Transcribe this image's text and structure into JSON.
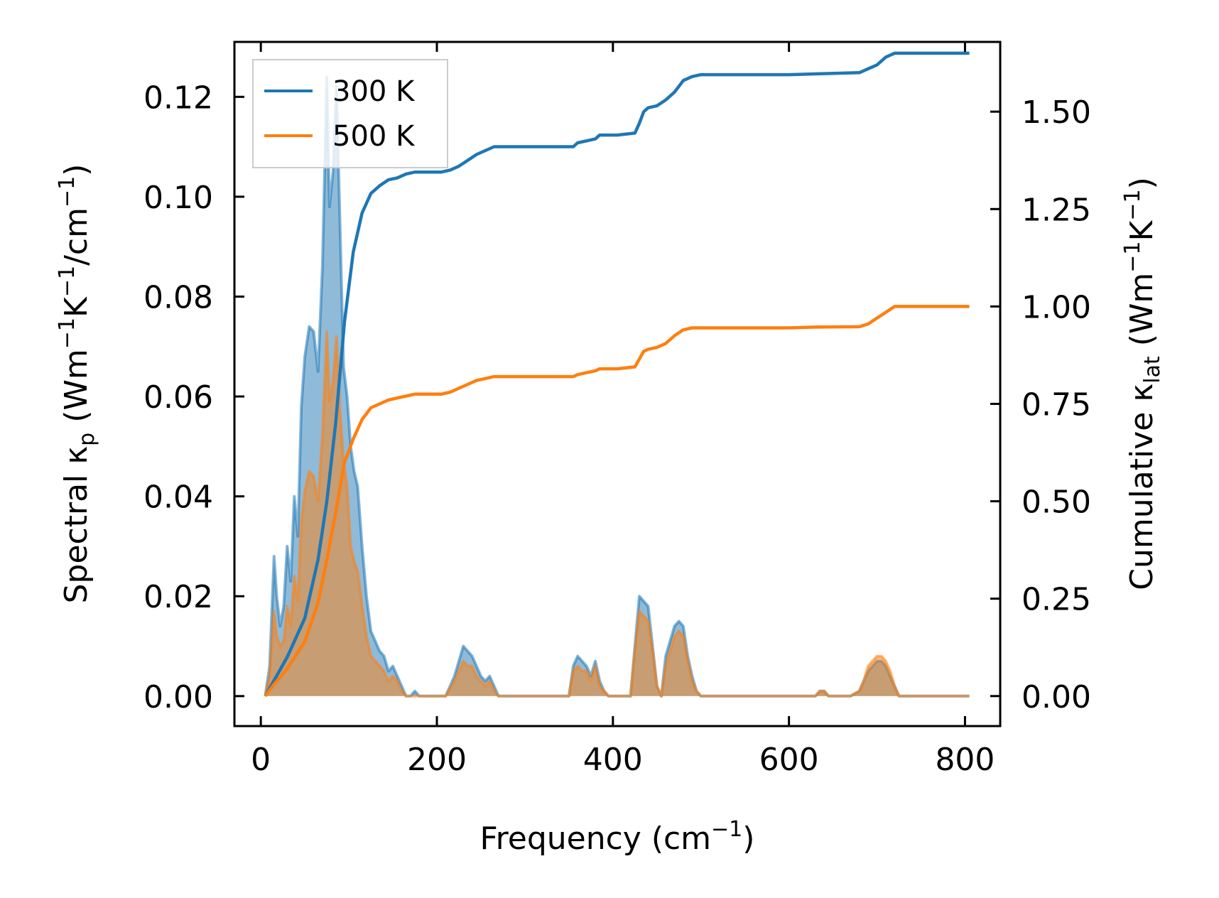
{
  "chart_data": {
    "type": "line",
    "xlabel_main": "Frequency (cm",
    "xlabel_sup": "−1",
    "xlabel_end": ")",
    "ylabel_left_text": "Spectral κ",
    "ylabel_left_sub": "p",
    "ylabel_left_units_a": " (Wm",
    "ylabel_left_sup1": "−1",
    "ylabel_left_units_b": "K",
    "ylabel_left_sup2": "−1",
    "ylabel_left_units_c": "/cm",
    "ylabel_left_sup3": "−1",
    "ylabel_left_end": ")",
    "ylabel_right_text": "Cumulative κ",
    "ylabel_right_sub": "lat",
    "ylabel_right_units_a": " (Wm",
    "ylabel_right_sup1": "−1",
    "ylabel_right_units_b": "K",
    "ylabel_right_sup2": "−1",
    "ylabel_right_end": ")",
    "xlim": [
      -30,
      840
    ],
    "ylim_left": [
      -0.006,
      0.131
    ],
    "ylim_right": [
      -0.077,
      1.679
    ],
    "x_ticks": [
      0,
      200,
      400,
      600,
      800
    ],
    "x_tick_labels": [
      "0",
      "200",
      "400",
      "600",
      "800"
    ],
    "y_left_ticks": [
      0,
      0.02,
      0.04,
      0.06,
      0.08,
      0.1,
      0.12
    ],
    "y_left_tick_labels": [
      "0.00",
      "0.02",
      "0.04",
      "0.06",
      "0.08",
      "0.10",
      "0.12"
    ],
    "y_right_ticks": [
      0,
      0.25,
      0.5,
      0.75,
      1.0,
      1.25,
      1.5
    ],
    "y_right_tick_labels": [
      "0.00",
      "0.25",
      "0.50",
      "0.75",
      "1.00",
      "1.25",
      "1.50"
    ],
    "legend_position": "top-left",
    "grid": false,
    "series": [
      {
        "name": "300 K",
        "color": "#1f77b4",
        "spectral_x": [
          5,
          10,
          15,
          18,
          22,
          26,
          30,
          34,
          38,
          42,
          46,
          50,
          55,
          60,
          65,
          70,
          75,
          78,
          82,
          86,
          90,
          94,
          98,
          102,
          106,
          110,
          115,
          120,
          125,
          130,
          135,
          140,
          145,
          150,
          155,
          160,
          165,
          170,
          175,
          180,
          185,
          190,
          195,
          200,
          210,
          220,
          225,
          230,
          235,
          240,
          245,
          250,
          255,
          260,
          265,
          270,
          275,
          280,
          300,
          350,
          355,
          360,
          365,
          370,
          375,
          380,
          385,
          390,
          395,
          400,
          420,
          425,
          430,
          435,
          440,
          445,
          450,
          455,
          460,
          465,
          470,
          475,
          480,
          485,
          490,
          495,
          500,
          520,
          600,
          630,
          635,
          640,
          645,
          650,
          670,
          680,
          685,
          690,
          695,
          700,
          705,
          710,
          715,
          720,
          725,
          730,
          740,
          800,
          805
        ],
        "spectral_y": [
          0.0,
          0.006,
          0.028,
          0.02,
          0.014,
          0.018,
          0.03,
          0.023,
          0.04,
          0.032,
          0.058,
          0.068,
          0.074,
          0.073,
          0.065,
          0.086,
          0.124,
          0.098,
          0.105,
          0.122,
          0.094,
          0.066,
          0.06,
          0.05,
          0.045,
          0.042,
          0.03,
          0.02,
          0.013,
          0.011,
          0.009,
          0.008,
          0.005,
          0.006,
          0.004,
          0.002,
          0.0,
          0.0,
          0.001,
          0.0,
          0.0,
          0.0,
          0.0,
          0.0,
          0.0,
          0.004,
          0.007,
          0.01,
          0.009,
          0.008,
          0.006,
          0.004,
          0.003,
          0.004,
          0.002,
          0.0,
          0.0,
          0.0,
          0.0,
          0.0,
          0.006,
          0.008,
          0.007,
          0.006,
          0.004,
          0.007,
          0.003,
          0.001,
          0.0,
          0.0,
          0.0,
          0.01,
          0.02,
          0.019,
          0.018,
          0.01,
          0.002,
          0.0,
          0.008,
          0.011,
          0.014,
          0.015,
          0.014,
          0.008,
          0.004,
          0.001,
          0.0,
          0.0,
          0.0,
          0.0,
          0.001,
          0.001,
          0.0,
          0.0,
          0.0,
          0.001,
          0.003,
          0.005,
          0.006,
          0.007,
          0.007,
          0.006,
          0.004,
          0.002,
          0.0,
          0.0,
          0.0,
          0.0,
          0.0
        ],
        "cumulative_x": [
          5,
          15,
          30,
          50,
          65,
          75,
          85,
          95,
          105,
          115,
          125,
          135,
          145,
          155,
          165,
          175,
          185,
          195,
          205,
          215,
          225,
          235,
          245,
          255,
          265,
          275,
          300,
          320,
          345,
          355,
          360,
          370,
          380,
          385,
          395,
          405,
          425,
          430,
          435,
          440,
          450,
          460,
          470,
          480,
          490,
          500,
          520,
          600,
          630,
          680,
          690,
          700,
          710,
          720,
          730,
          740,
          800,
          805
        ],
        "cumulative_y": [
          0.0,
          0.04,
          0.1,
          0.2,
          0.35,
          0.5,
          0.7,
          0.96,
          1.14,
          1.24,
          1.29,
          1.31,
          1.325,
          1.33,
          1.34,
          1.345,
          1.345,
          1.345,
          1.345,
          1.35,
          1.36,
          1.375,
          1.39,
          1.4,
          1.41,
          1.41,
          1.41,
          1.41,
          1.41,
          1.41,
          1.42,
          1.425,
          1.43,
          1.44,
          1.44,
          1.44,
          1.445,
          1.47,
          1.5,
          1.51,
          1.515,
          1.53,
          1.55,
          1.58,
          1.59,
          1.595,
          1.595,
          1.595,
          1.597,
          1.6,
          1.61,
          1.62,
          1.64,
          1.65,
          1.65,
          1.65,
          1.65,
          1.65
        ]
      },
      {
        "name": "500 K",
        "color": "#ff7f0e",
        "spectral_x": [
          5,
          10,
          15,
          18,
          22,
          26,
          30,
          34,
          38,
          42,
          46,
          50,
          55,
          60,
          65,
          70,
          75,
          78,
          82,
          86,
          90,
          94,
          98,
          102,
          106,
          110,
          115,
          120,
          125,
          130,
          135,
          140,
          145,
          150,
          155,
          160,
          165,
          170,
          175,
          180,
          185,
          190,
          195,
          200,
          210,
          220,
          225,
          230,
          235,
          240,
          245,
          250,
          255,
          260,
          265,
          270,
          275,
          280,
          300,
          350,
          355,
          360,
          365,
          370,
          375,
          380,
          385,
          390,
          395,
          400,
          420,
          425,
          430,
          435,
          440,
          445,
          450,
          455,
          460,
          465,
          470,
          475,
          480,
          485,
          490,
          495,
          500,
          520,
          600,
          630,
          635,
          640,
          645,
          650,
          670,
          680,
          685,
          690,
          695,
          700,
          705,
          710,
          715,
          720,
          725,
          730,
          740,
          800,
          805
        ],
        "spectral_y": [
          0.0,
          0.004,
          0.017,
          0.012,
          0.01,
          0.011,
          0.018,
          0.014,
          0.024,
          0.019,
          0.035,
          0.041,
          0.045,
          0.044,
          0.039,
          0.052,
          0.073,
          0.059,
          0.063,
          0.072,
          0.057,
          0.047,
          0.042,
          0.03,
          0.027,
          0.025,
          0.018,
          0.012,
          0.008,
          0.007,
          0.006,
          0.005,
          0.003,
          0.004,
          0.003,
          0.001,
          0.0,
          0.0,
          0.0,
          0.0,
          0.0,
          0.0,
          0.0,
          0.0,
          0.0,
          0.003,
          0.005,
          0.007,
          0.006,
          0.006,
          0.004,
          0.003,
          0.002,
          0.003,
          0.001,
          0.0,
          0.0,
          0.0,
          0.0,
          0.0,
          0.005,
          0.006,
          0.005,
          0.005,
          0.003,
          0.006,
          0.002,
          0.001,
          0.0,
          0.0,
          0.0,
          0.009,
          0.017,
          0.016,
          0.015,
          0.009,
          0.002,
          0.0,
          0.006,
          0.009,
          0.012,
          0.013,
          0.012,
          0.007,
          0.003,
          0.001,
          0.0,
          0.0,
          0.0,
          0.0,
          0.001,
          0.001,
          0.0,
          0.0,
          0.0,
          0.001,
          0.003,
          0.006,
          0.007,
          0.008,
          0.008,
          0.007,
          0.005,
          0.002,
          0.0,
          0.0,
          0.0,
          0.0,
          0.0
        ],
        "cumulative_x": [
          5,
          15,
          30,
          50,
          65,
          75,
          85,
          95,
          105,
          115,
          125,
          135,
          145,
          155,
          165,
          175,
          185,
          195,
          205,
          215,
          225,
          235,
          245,
          255,
          265,
          275,
          300,
          320,
          345,
          355,
          360,
          370,
          380,
          385,
          395,
          405,
          425,
          430,
          435,
          440,
          450,
          460,
          470,
          480,
          490,
          500,
          520,
          600,
          630,
          680,
          690,
          700,
          710,
          720,
          730,
          740,
          800,
          805
        ],
        "cumulative_y": [
          0.0,
          0.03,
          0.07,
          0.14,
          0.24,
          0.35,
          0.47,
          0.6,
          0.66,
          0.71,
          0.74,
          0.75,
          0.76,
          0.765,
          0.77,
          0.775,
          0.775,
          0.775,
          0.775,
          0.78,
          0.79,
          0.8,
          0.81,
          0.815,
          0.82,
          0.82,
          0.82,
          0.82,
          0.82,
          0.82,
          0.825,
          0.83,
          0.835,
          0.84,
          0.84,
          0.84,
          0.845,
          0.865,
          0.885,
          0.89,
          0.895,
          0.905,
          0.925,
          0.94,
          0.945,
          0.945,
          0.945,
          0.945,
          0.947,
          0.948,
          0.955,
          0.97,
          0.985,
          1.0,
          1.0,
          1.0,
          1.0,
          1.0
        ]
      }
    ]
  }
}
